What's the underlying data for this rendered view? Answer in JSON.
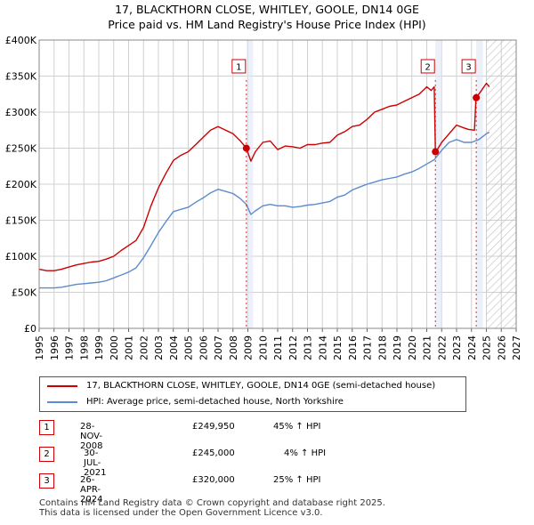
{
  "title_line1": "17, BLACKTHORN CLOSE, WHITLEY, GOOLE, DN14 0GE",
  "title_line2": "Price paid vs. HM Land Registry's House Price Index (HPI)",
  "legend": {
    "property": "17, BLACKTHORN CLOSE, WHITLEY, GOOLE, DN14 0GE (semi-detached house)",
    "hpi": "HPI: Average price, semi-detached house, North Yorkshire"
  },
  "sales": [
    {
      "num": "1",
      "date": "28-NOV-2008",
      "price": "£249,950",
      "hpi": "45% ↑ HPI"
    },
    {
      "num": "2",
      "date": "30-JUL-2021",
      "price": "£245,000",
      "hpi": "4% ↑ HPI"
    },
    {
      "num": "3",
      "date": "26-APR-2024",
      "price": "£320,000",
      "hpi": "25% ↑ HPI"
    }
  ],
  "footer": {
    "line1": "Contains HM Land Registry data © Crown copyright and database right 2025.",
    "line2": "This data is licensed under the Open Government Licence v3.0."
  },
  "colors": {
    "property": "#cc0000",
    "hpi": "#5b8bd0",
    "grid": "#d0d0d0",
    "shade": "#dde6f5"
  },
  "chart_data": {
    "type": "line",
    "xlim": [
      1995,
      2027
    ],
    "ylim": [
      0,
      400000
    ],
    "ytick_values": [
      0,
      50000,
      100000,
      150000,
      200000,
      250000,
      300000,
      350000,
      400000
    ],
    "ytick_labels": [
      "£0",
      "£50K",
      "£100K",
      "£150K",
      "£200K",
      "£250K",
      "£300K",
      "£350K",
      "£400K"
    ],
    "xtick_labels": [
      "1995",
      "1996",
      "1997",
      "1998",
      "1999",
      "2000",
      "2001",
      "2002",
      "2003",
      "2004",
      "2005",
      "2006",
      "2007",
      "2008",
      "2009",
      "2010",
      "2011",
      "2012",
      "2013",
      "2014",
      "2015",
      "2016",
      "2017",
      "2018",
      "2019",
      "2020",
      "2021",
      "2022",
      "2023",
      "2024",
      "2025",
      "2026",
      "2027"
    ],
    "future_hatch_from": 2025.0,
    "series": [
      {
        "name": "17, BLACKTHORN CLOSE, WHITLEY, GOOLE, DN14 0GE (semi-detached house)",
        "x": [
          1995.0,
          1995.5,
          1996.0,
          1996.5,
          1997.0,
          1997.5,
          1998.0,
          1998.5,
          1999.0,
          1999.5,
          2000.0,
          2000.5,
          2001.0,
          2001.5,
          2002.0,
          2002.5,
          2003.0,
          2003.5,
          2004.0,
          2004.5,
          2005.0,
          2005.5,
          2006.0,
          2006.5,
          2007.0,
          2007.5,
          2008.0,
          2008.5,
          2008.9,
          2009.2,
          2009.5,
          2010.0,
          2010.5,
          2011.0,
          2011.5,
          2012.0,
          2012.5,
          2013.0,
          2013.5,
          2014.0,
          2014.5,
          2015.0,
          2015.5,
          2016.0,
          2016.5,
          2017.0,
          2017.5,
          2018.0,
          2018.5,
          2019.0,
          2019.5,
          2020.0,
          2020.5,
          2021.0,
          2021.3,
          2021.5,
          2021.58,
          2021.62,
          2022.0,
          2022.5,
          2023.0,
          2023.5,
          2023.8,
          2024.2,
          2024.3,
          2024.32,
          2024.6,
          2025.0,
          2025.2
        ],
        "values": [
          82000,
          80000,
          80000,
          82000,
          85000,
          88000,
          90000,
          92000,
          93000,
          96000,
          100000,
          108000,
          115000,
          122000,
          140000,
          170000,
          195000,
          215000,
          233000,
          240000,
          245000,
          255000,
          265000,
          275000,
          280000,
          275000,
          270000,
          260000,
          249950,
          232000,
          245000,
          258000,
          260000,
          248000,
          253000,
          252000,
          250000,
          255000,
          255000,
          257000,
          258000,
          268000,
          273000,
          280000,
          282000,
          290000,
          300000,
          304000,
          308000,
          310000,
          315000,
          320000,
          325000,
          335000,
          330000,
          335000,
          245000,
          245000,
          258000,
          270000,
          282000,
          278000,
          276000,
          275000,
          320000,
          320000,
          328000,
          340000,
          335000
        ]
      },
      {
        "name": "HPI: Average price, semi-detached house, North Yorkshire",
        "x": [
          1995.0,
          1995.5,
          1996.0,
          1996.5,
          1997.0,
          1997.5,
          1998.0,
          1998.5,
          1999.0,
          1999.5,
          2000.0,
          2000.5,
          2001.0,
          2001.5,
          2002.0,
          2002.5,
          2003.0,
          2003.5,
          2004.0,
          2004.5,
          2005.0,
          2005.5,
          2006.0,
          2006.5,
          2007.0,
          2007.5,
          2008.0,
          2008.5,
          2008.9,
          2009.2,
          2009.5,
          2010.0,
          2010.5,
          2011.0,
          2011.5,
          2012.0,
          2012.5,
          2013.0,
          2013.5,
          2014.0,
          2014.5,
          2015.0,
          2015.5,
          2016.0,
          2016.5,
          2017.0,
          2017.5,
          2018.0,
          2018.5,
          2019.0,
          2019.5,
          2020.0,
          2020.5,
          2021.0,
          2021.5,
          2022.0,
          2022.5,
          2023.0,
          2023.5,
          2024.0,
          2024.5,
          2025.0,
          2025.2
        ],
        "values": [
          56000,
          56000,
          56000,
          57000,
          59000,
          61000,
          62000,
          63000,
          64000,
          66000,
          70000,
          74000,
          78000,
          84000,
          98000,
          115000,
          133000,
          148000,
          162000,
          165000,
          168000,
          175000,
          181000,
          188000,
          193000,
          190000,
          187000,
          180000,
          172000,
          158000,
          163000,
          170000,
          172000,
          170000,
          170000,
          168000,
          169000,
          171000,
          172000,
          174000,
          176000,
          182000,
          185000,
          192000,
          196000,
          200000,
          203000,
          206000,
          208000,
          210000,
          214000,
          217000,
          222000,
          228000,
          234000,
          247000,
          258000,
          262000,
          258000,
          258000,
          262000,
          270000,
          272000
        ]
      }
    ],
    "sales_markers": [
      {
        "label": "1",
        "x": 2008.9,
        "value": 249950
      },
      {
        "label": "2",
        "x": 2021.58,
        "value": 245000
      },
      {
        "label": "3",
        "x": 2024.32,
        "value": 320000
      }
    ]
  }
}
